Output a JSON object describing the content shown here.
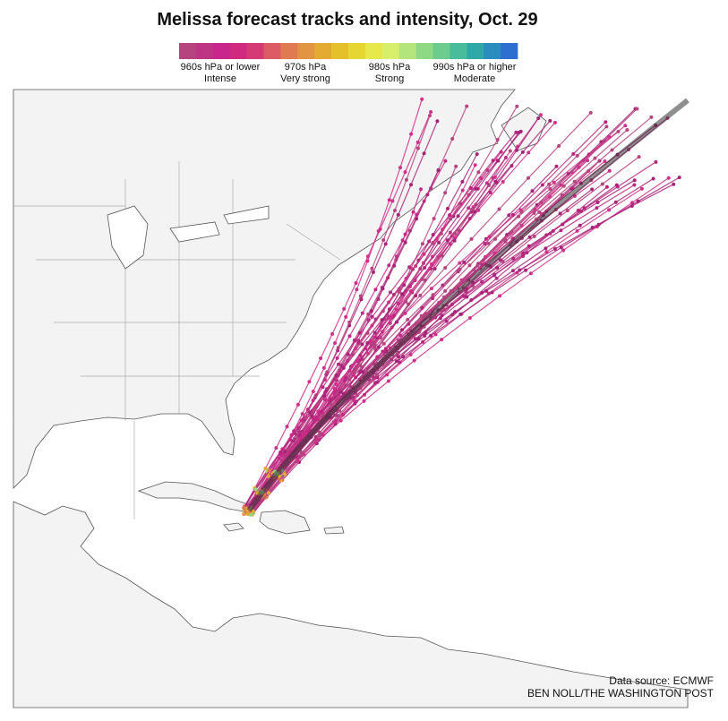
{
  "header": {
    "title": "Melissa forecast tracks and intensity, Oct. 29"
  },
  "legend": {
    "colors": [
      "#b5447f",
      "#bf3585",
      "#c8268a",
      "#cf2a7f",
      "#d63a74",
      "#dd5b64",
      "#e07a52",
      "#e39442",
      "#e4ab33",
      "#e4c02b",
      "#e6d631",
      "#e6e84c",
      "#d8ef6c",
      "#b4e57c",
      "#8fd884",
      "#6ccc8e",
      "#49bd9b",
      "#2fa8a8",
      "#2a8cbf",
      "#2c6fd1"
    ],
    "items": [
      {
        "line1": "960s hPa or lower",
        "line2": "Intense"
      },
      {
        "line1": "970s hPa",
        "line2": "Very strong"
      },
      {
        "line1": "980s hPa",
        "line2": "Strong"
      },
      {
        "line1": "990s hPa or higher",
        "line2": "Moderate"
      }
    ]
  },
  "footer": {
    "source": "Data source: ECMWF",
    "credit": "BEN NOLL/THE WASHINGTON POST"
  }
}
